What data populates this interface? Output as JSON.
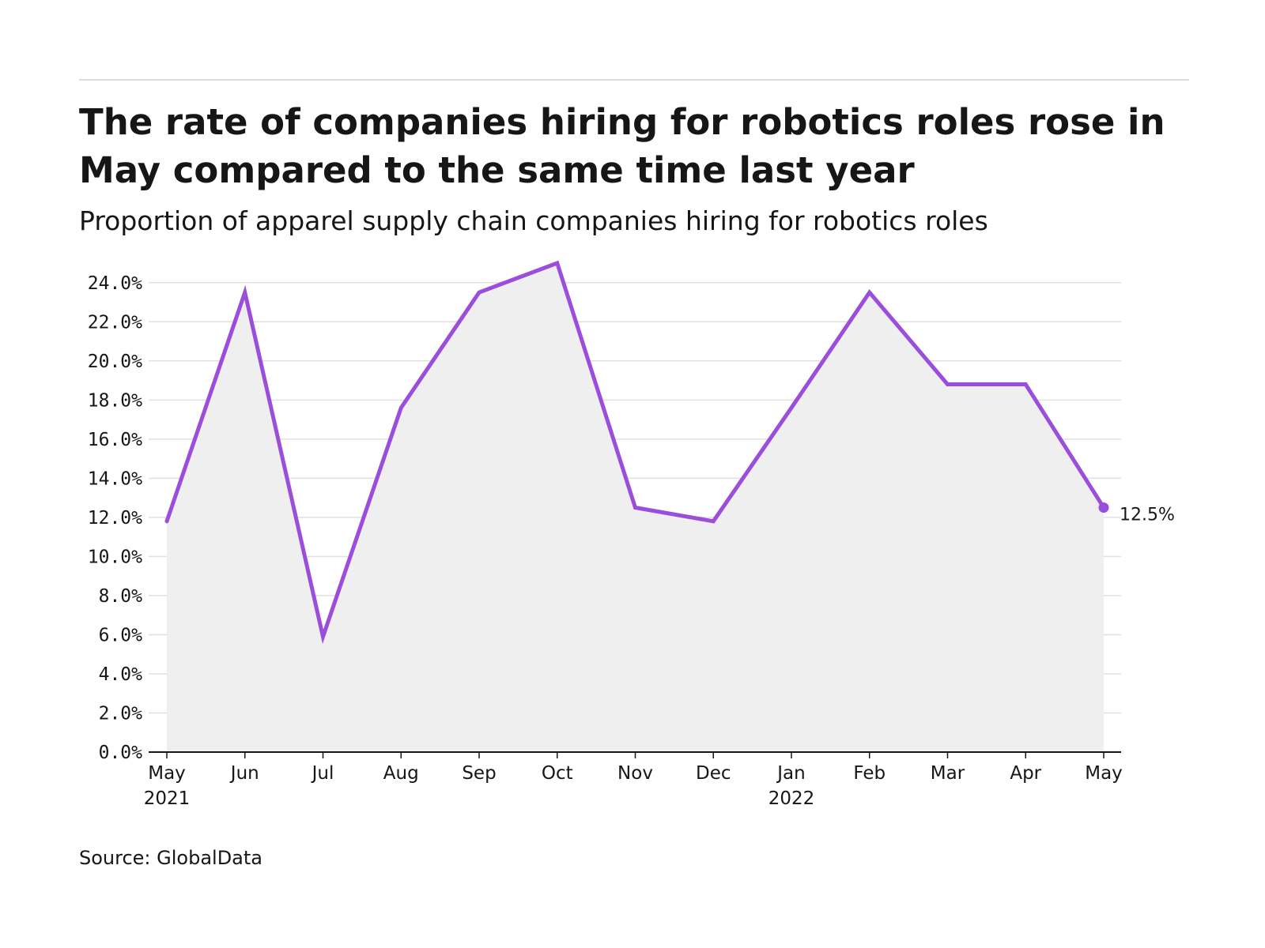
{
  "title": "The rate of companies hiring for robotics roles rose in May compared to the same time last year",
  "subtitle": "Proportion of apparel supply chain companies hiring for robotics roles",
  "source": "Source: GlobalData",
  "colors": {
    "line": "#9b4ddb",
    "area": "#efefef",
    "grid": "#e0e0e0",
    "axis": "#161616",
    "rule": "#dcdcdc"
  },
  "chart_data": {
    "type": "area",
    "x": [
      "May 2021",
      "Jun 2021",
      "Jul 2021",
      "Aug 2021",
      "Sep 2021",
      "Oct 2021",
      "Nov 2021",
      "Dec 2021",
      "Jan 2022",
      "Feb 2022",
      "Mar 2022",
      "Apr 2022",
      "May 2022"
    ],
    "tick_labels": [
      {
        "month": "May",
        "year": "2021"
      },
      {
        "month": "Jun",
        "year": ""
      },
      {
        "month": "Jul",
        "year": ""
      },
      {
        "month": "Aug",
        "year": ""
      },
      {
        "month": "Sep",
        "year": ""
      },
      {
        "month": "Oct",
        "year": ""
      },
      {
        "month": "Nov",
        "year": ""
      },
      {
        "month": "Dec",
        "year": ""
      },
      {
        "month": "Jan",
        "year": "2022"
      },
      {
        "month": "Feb",
        "year": ""
      },
      {
        "month": "Mar",
        "year": ""
      },
      {
        "month": "Apr",
        "year": ""
      },
      {
        "month": "May",
        "year": ""
      }
    ],
    "series": [
      {
        "values": [
          11.8,
          23.5,
          5.9,
          17.6,
          23.5,
          25.0,
          12.5,
          11.8,
          17.6,
          23.5,
          18.8,
          18.8,
          12.5
        ]
      }
    ],
    "ylim": [
      0,
      25
    ],
    "yticks": [
      0,
      2,
      4,
      6,
      8,
      10,
      12,
      14,
      16,
      18,
      20,
      22,
      24
    ],
    "ytick_labels": [
      "0.0%",
      "2.0%",
      "4.0%",
      "6.0%",
      "8.0%",
      "10.0%",
      "12.0%",
      "14.0%",
      "16.0%",
      "18.0%",
      "20.0%",
      "22.0%",
      "24.0%"
    ],
    "end_label": "12.5%",
    "grid": true,
    "xlabel": "",
    "ylabel": ""
  }
}
